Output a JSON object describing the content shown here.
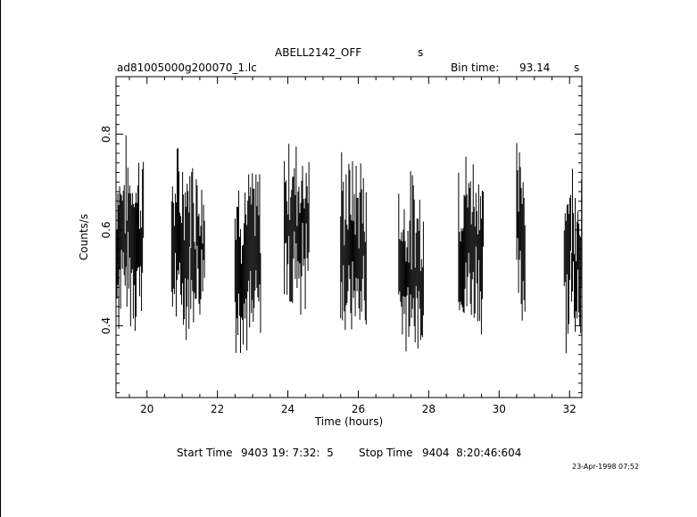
{
  "header": {
    "object_name": "ABELL2142_OFF",
    "object_suffix": "s",
    "filename": "ad81005000g200070_1.lc",
    "bin_time_label": "Bin time:",
    "bin_time_value": "93.14",
    "bin_time_unit": "s"
  },
  "footer": {
    "start_label": "Start Time",
    "start_value": "9403 19: 7:32:  5",
    "stop_label": "Stop Time",
    "stop_value": "9404  8:20:46:604",
    "stamp": "23-Apr-1998 07:52"
  },
  "chart_data": {
    "type": "line",
    "style": "vertical error bars (light curve)",
    "title": "ABELL2142_OFF",
    "xlabel": "Time (hours)",
    "ylabel": "Counts/s",
    "xlim": [
      19.12,
      32.35
    ],
    "ylim": [
      0.25,
      0.92
    ],
    "x_ticks": [
      20,
      22,
      24,
      26,
      28,
      30,
      32
    ],
    "x_tick_labels": [
      "20",
      "22",
      "24",
      "26",
      "28",
      "30",
      "32"
    ],
    "y_ticks": [
      0.4,
      0.6,
      0.8
    ],
    "y_tick_labels": [
      "0.4",
      "0.6",
      "0.8"
    ],
    "grid": false,
    "series": [
      {
        "segments": [
          {
            "x_start": 19.12,
            "x_end": 19.9,
            "mean": 0.59
          },
          {
            "x_start": 20.7,
            "x_end": 21.65,
            "mean": 0.575
          },
          {
            "x_start": 22.5,
            "x_end": 23.25,
            "mean": 0.54
          },
          {
            "x_start": 23.9,
            "x_end": 24.6,
            "mean": 0.61
          },
          {
            "x_start": 25.5,
            "x_end": 26.25,
            "mean": 0.565
          },
          {
            "x_start": 27.15,
            "x_end": 27.85,
            "mean": 0.52
          },
          {
            "x_start": 28.85,
            "x_end": 29.55,
            "mean": 0.58
          },
          {
            "x_start": 30.5,
            "x_end": 30.75,
            "mean": 0.585
          },
          {
            "x_start": 31.85,
            "x_end": 32.35,
            "mean": 0.56
          }
        ]
      }
    ]
  }
}
